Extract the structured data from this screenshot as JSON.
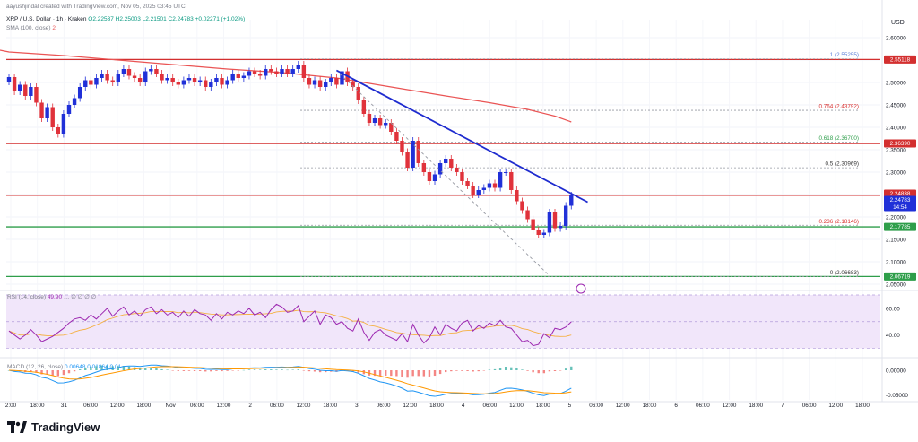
{
  "header": {
    "published": "aayushjindal created with TradingView.com, Nov 05, 2025 03:45 UTC",
    "symbol": "XRP / U.S. Dollar · 1h · Kraken",
    "ohlc": "O2.22537 H2.25003 L2.21501 C2.24783 +0.02271 (+1.02%)",
    "sma_label": "SMA (100, close)",
    "sma_value": "2"
  },
  "rsi_panel": {
    "label": "RSI (14, close)",
    "value": "49.90",
    "extra": "… ∅ ∅ ∅ ∅"
  },
  "macd_panel": {
    "label": "MACD (12, 26, close)",
    "values": "0.00648  0.01864  0.01..."
  },
  "brand": "TradingView",
  "colors": {
    "up": "#2030d8",
    "down": "#e0323b",
    "sma": "#ea5454",
    "trendline": "#1e2bcf",
    "resistance": "#d32f2f",
    "support": "#2e9e4a",
    "rsi": "#9c27b0",
    "rsi_band": "#f1e6fa",
    "macd": "#2196f3",
    "signal": "#ff9800"
  },
  "chart_data": {
    "type": "candlestick",
    "currency": "USD",
    "ylim": [
      2.04,
      2.64
    ],
    "yticks": [
      "2.60000",
      "2.55000",
      "2.50000",
      "2.45000",
      "2.40000",
      "2.35000",
      "2.30000",
      "2.25000",
      "2.20000",
      "2.15000",
      "2.10000",
      "2.05000"
    ],
    "xticks": [
      "2:00",
      "18:00",
      "31",
      "06:00",
      "12:00",
      "18:00",
      "Nov",
      "06:00",
      "12:00",
      "2",
      "06:00",
      "12:00",
      "18:00",
      "3",
      "06:00",
      "12:00",
      "18:00",
      "4",
      "06:00",
      "12:00",
      "18:00",
      "5",
      "06:00",
      "12:00",
      "18:00",
      "6",
      "06:00",
      "12:00",
      "18:00",
      "7",
      "06:00",
      "12:00",
      "18:00"
    ],
    "close": [
      2.512,
      2.48,
      2.495,
      2.47,
      2.49,
      2.455,
      2.42,
      2.445,
      2.4,
      2.385,
      2.43,
      2.45,
      2.465,
      2.49,
      2.505,
      2.495,
      2.51,
      2.52,
      2.505,
      2.5,
      2.52,
      2.53,
      2.515,
      2.51,
      2.5,
      2.525,
      2.53,
      2.52,
      2.505,
      2.51,
      2.5,
      2.495,
      2.505,
      2.51,
      2.5,
      2.505,
      2.49,
      2.5,
      2.51,
      2.495,
      2.505,
      2.52,
      2.51,
      2.515,
      2.525,
      2.52,
      2.515,
      2.53,
      2.525,
      2.52,
      2.53,
      2.52,
      2.53,
      2.54,
      2.51,
      2.495,
      2.505,
      2.49,
      2.5,
      2.51,
      2.495,
      2.525,
      2.5,
      2.49,
      2.46,
      2.43,
      2.41,
      2.42,
      2.405,
      2.41,
      2.39,
      2.37,
      2.345,
      2.31,
      2.37,
      2.32,
      2.3,
      2.28,
      2.295,
      2.32,
      2.33,
      2.31,
      2.3,
      2.28,
      2.27,
      2.25,
      2.26,
      2.265,
      2.275,
      2.265,
      2.3,
      2.3,
      2.26,
      2.235,
      2.215,
      2.195,
      2.17,
      2.16,
      2.165,
      2.21,
      2.175,
      2.18,
      2.225,
      2.248
    ],
    "sma_100": {
      "x_index": [
        0,
        10,
        20,
        30,
        40,
        50,
        60,
        70,
        80,
        88,
        95,
        100,
        103
      ],
      "values": [
        2.568,
        2.56,
        2.55,
        2.54,
        2.53,
        2.522,
        2.51,
        2.49,
        2.47,
        2.455,
        2.44,
        2.425,
        2.412
      ]
    },
    "trendline": {
      "from": {
        "index": 60,
        "price": 2.527
      },
      "to": {
        "index": 106,
        "price": 2.233
      }
    },
    "fib_projection": {
      "from": {
        "index": 60,
        "price": 2.527
      },
      "to": {
        "index": 99,
        "price": 2.069
      }
    },
    "horizontal_lines": [
      {
        "label": "2.55118",
        "price": 2.55118,
        "color": "#d32f2f"
      },
      {
        "label": "2.36390",
        "price": 2.3639,
        "color": "#d32f2f"
      },
      {
        "label": "2.24838",
        "price": 2.24838,
        "color": "#d32f2f"
      },
      {
        "label": "2.17785",
        "price": 2.17785,
        "color": "#2e9e4a"
      },
      {
        "label": "2.06719",
        "price": 2.06719,
        "color": "#2e9e4a"
      }
    ],
    "fib_levels": [
      {
        "label": "1 (2.55255)",
        "price": 2.55255,
        "color": "#5b7fd8"
      },
      {
        "label": "0.764 (2.43792)",
        "price": 2.43792,
        "color": "#d9302e"
      },
      {
        "label": "0.618 (2.36700)",
        "price": 2.367,
        "color": "#2e9e4a"
      },
      {
        "label": "0.5 (2.30969)",
        "price": 2.30969,
        "color": "#333333"
      },
      {
        "label": "0.236 (2.18146)",
        "price": 2.18146,
        "color": "#d9302e"
      },
      {
        "label": "0 (2.06683)",
        "price": 2.06683,
        "color": "#333333"
      }
    ],
    "price_tags": [
      {
        "label": "2.55118",
        "price": 2.55118,
        "color": "#d32f2f"
      },
      {
        "label": "2.36390",
        "price": 2.3639,
        "color": "#d32f2f"
      },
      {
        "label": "2.24838",
        "price": 2.252,
        "color": "#d32f2f"
      },
      {
        "label": "2.24783",
        "price": 2.238,
        "color": "#2030d8",
        "sub": "14:54"
      },
      {
        "label": "2.17785",
        "price": 2.17785,
        "color": "#2e9e4a"
      },
      {
        "label": "2.06719",
        "price": 2.06719,
        "color": "#2e9e4a"
      }
    ],
    "rsi": {
      "ylim": [
        25,
        72
      ],
      "yticks": [
        "60.00",
        "40.00"
      ],
      "band": [
        30,
        70
      ],
      "values": [
        43,
        40,
        37,
        40,
        44,
        40,
        35,
        37,
        39,
        42,
        45,
        49,
        52,
        53,
        51,
        55,
        52,
        56,
        60,
        54,
        58,
        61,
        55,
        58,
        54,
        59,
        61,
        56,
        59,
        55,
        57,
        53,
        58,
        54,
        59,
        56,
        55,
        51,
        56,
        52,
        57,
        55,
        58,
        56,
        60,
        55,
        57,
        53,
        59,
        63,
        61,
        57,
        58,
        62,
        50,
        54,
        58,
        48,
        55,
        53,
        48,
        50,
        45,
        43,
        52,
        42,
        36,
        42,
        44,
        40,
        38,
        36,
        41,
        35,
        48,
        40,
        34,
        38,
        46,
        40,
        48,
        45,
        43,
        49,
        51,
        43,
        47,
        45,
        49,
        47,
        51,
        46,
        45,
        40,
        35,
        36,
        32,
        33,
        41,
        38,
        45,
        44,
        46,
        49.9
      ]
    },
    "macd": {
      "ylim": [
        -0.06,
        0.02
      ],
      "yticks": [
        "0.00000",
        "-0.05000"
      ]
    }
  }
}
